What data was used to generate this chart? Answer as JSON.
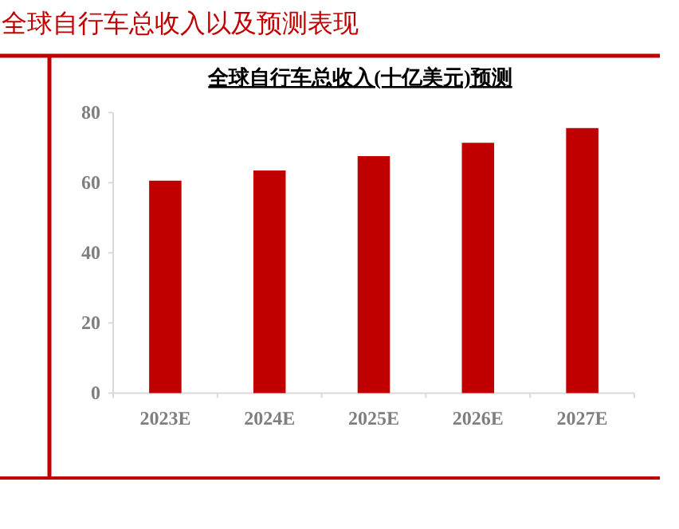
{
  "chart_data": {
    "type": "bar",
    "title": "全球自行车总收入以及预测表现",
    "subtitle": "全球自行车总收入(十亿美元)预测",
    "categories": [
      "2023E",
      "2024E",
      "2025E",
      "2026E",
      "2027E"
    ],
    "values": [
      60.6,
      63.5,
      67.6,
      71.4,
      75.6
    ],
    "color": "#c00000",
    "ylim": [
      0,
      80
    ],
    "yticks": [
      0,
      20,
      40,
      60,
      80
    ],
    "grid": false,
    "legend": false
  }
}
